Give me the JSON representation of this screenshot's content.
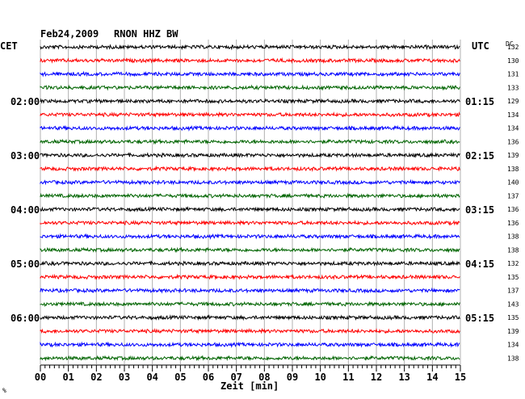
{
  "chart_data": {
    "type": "line",
    "title": "Feb24,2009",
    "subtitle": "RNON HHZ BW",
    "left_axis_label": "CET",
    "right_axis_label": "UTC",
    "dc_label": "DC",
    "xlabel": "Zeit [min]",
    "xlim": [
      0,
      15
    ],
    "x_tick_labels": [
      "00",
      "01",
      "02",
      "03",
      "04",
      "05",
      "06",
      "07",
      "08",
      "09",
      "10",
      "11",
      "12",
      "13",
      "14",
      "15"
    ],
    "left_time_labels": [
      {
        "row": 4,
        "text": "02:00"
      },
      {
        "row": 8,
        "text": "03:00"
      },
      {
        "row": 12,
        "text": "04:00"
      },
      {
        "row": 16,
        "text": "05:00"
      },
      {
        "row": 20,
        "text": "06:00"
      }
    ],
    "right_time_labels": [
      {
        "row": 4,
        "text": "01:15"
      },
      {
        "row": 8,
        "text": "02:15"
      },
      {
        "row": 12,
        "text": "03:15"
      },
      {
        "row": 16,
        "text": "04:15"
      },
      {
        "row": 20,
        "text": "05:15"
      }
    ],
    "dc_values": [
      "132",
      "130",
      "131",
      "133",
      "129",
      "134",
      "134",
      "136",
      "139",
      "138",
      "140",
      "137",
      "136",
      "136",
      "138",
      "138",
      "132",
      "135",
      "137",
      "143",
      "135",
      "139",
      "134",
      "138"
    ],
    "trace_colors": [
      "#000000",
      "#ff0000",
      "#0000ff",
      "#006400"
    ],
    "corner_mark": "%",
    "grid": true
  }
}
